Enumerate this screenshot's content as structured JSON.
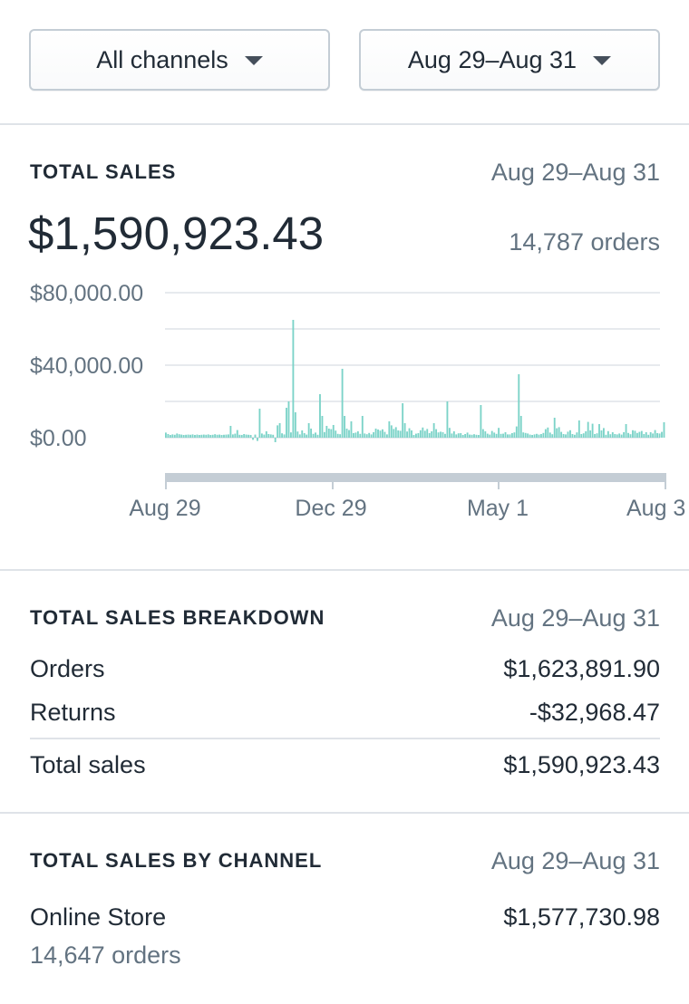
{
  "filters": {
    "channel_label": "All channels",
    "date_label": "Aug 29–Aug 31"
  },
  "total_sales": {
    "title": "TOTAL SALES",
    "range": "Aug 29–Aug 31",
    "value": "$1,590,923.43",
    "orders": "14,787 orders"
  },
  "chart_data": {
    "type": "bar",
    "title": "",
    "xlabel": "",
    "ylabel": "",
    "y_ticks": [
      "$80,000.00",
      "$40,000.00",
      "$0.00"
    ],
    "x_ticks": [
      "Aug 29",
      "Dec 29",
      "May 1",
      "Aug 3"
    ],
    "ylim": [
      -20000,
      80000
    ],
    "grid": true,
    "color": "#7cd3c8",
    "series": [
      {
        "values": [
          2800,
          2000,
          1500,
          1800,
          1600,
          2300,
          1900,
          1700,
          1500,
          1600,
          1700,
          1600,
          1800,
          1500,
          1700,
          1500,
          1600,
          1700,
          1600,
          1800,
          1500,
          1600,
          1900,
          1600,
          1700,
          1500,
          1600,
          1700,
          1800,
          6500,
          1800,
          2200,
          4200,
          1600,
          1500,
          2000,
          1700,
          1600,
          1500,
          -1200,
          1700,
          -1800,
          16000,
          2300,
          1700,
          3500,
          2000,
          1800,
          1600,
          -2500,
          6800,
          8000,
          2400,
          1800,
          16500,
          20000,
          2900,
          65000,
          14000,
          3400,
          1800,
          4000,
          2500,
          1700,
          8000,
          5000,
          2100,
          2800,
          1600,
          24000,
          12000,
          3100,
          6500,
          5000,
          4700,
          7000,
          3900,
          2100,
          1900,
          38000,
          12000,
          5000,
          4200,
          9000,
          2500,
          2800,
          3500,
          2100,
          12000,
          2300,
          1900,
          2600,
          1800,
          3000,
          5000,
          4500,
          3900,
          4600,
          3200,
          1800,
          9000,
          6800,
          4800,
          5800,
          4000,
          3800,
          19000,
          8000,
          3400,
          5200,
          4000,
          1500,
          2200,
          2500,
          4100,
          5600,
          3800,
          4800,
          2500,
          3500,
          8000,
          4700,
          2900,
          3300,
          3000,
          2100,
          20000,
          5400,
          2300,
          3500,
          1800,
          2400,
          2500,
          1500,
          2000,
          2800,
          1700,
          1600,
          1900,
          1600,
          1500,
          18000,
          4700,
          3500,
          2200,
          1700,
          3700,
          2800,
          2100,
          5400,
          2100,
          2200,
          3000,
          1800,
          1800,
          2500,
          2900,
          6200,
          35000,
          12000,
          2900,
          2600,
          2300,
          1700,
          1500,
          1800,
          2100,
          1700,
          2000,
          2600,
          4700,
          5600,
          2800,
          1900,
          11000,
          5200,
          5800,
          3200,
          2000,
          1800,
          3300,
          4100,
          2000,
          1600,
          2900,
          9500,
          2000,
          2400,
          3500,
          8700,
          4000,
          7700,
          2000,
          2400,
          7500,
          4000,
          5300,
          1600,
          3600,
          1900,
          3000,
          2000,
          1800,
          2300,
          1700,
          3000,
          7500,
          2600,
          1900,
          4100,
          3800,
          2600,
          3200,
          3700,
          2000,
          3000,
          1600,
          3000,
          2300,
          4200,
          2500,
          2300,
          3200,
          8500
        ]
      }
    ]
  },
  "breakdown": {
    "title": "TOTAL SALES BREAKDOWN",
    "range": "Aug 29–Aug 31",
    "rows": [
      {
        "label": "Orders",
        "value": "$1,623,891.90"
      },
      {
        "label": "Returns",
        "value": "-$32,968.47"
      }
    ],
    "total": {
      "label": "Total sales",
      "value": "$1,590,923.43"
    }
  },
  "by_channel": {
    "title": "TOTAL SALES BY CHANNEL",
    "range": "Aug 29–Aug 31",
    "channels": [
      {
        "name": "Online Store",
        "value": "$1,577,730.98",
        "orders": "14,647 orders"
      }
    ]
  }
}
